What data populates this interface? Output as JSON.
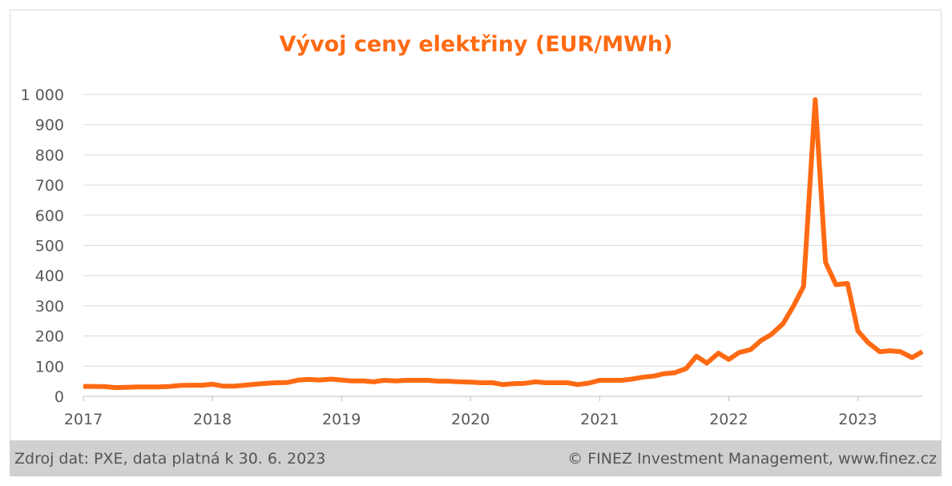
{
  "chart_data": {
    "type": "line",
    "title": "Vývoj ceny elektřiny (EUR/MWh)",
    "xlabel": "",
    "ylabel": "",
    "ylim": [
      0,
      1000
    ],
    "yticks": [
      "0",
      "100",
      "200",
      "300",
      "400",
      "500",
      "600",
      "700",
      "800",
      "900",
      "1 000"
    ],
    "ytick_values": [
      0,
      100,
      200,
      300,
      400,
      500,
      600,
      700,
      800,
      900,
      1000
    ],
    "xticks": [
      "2017",
      "2018",
      "2019",
      "2020",
      "2021",
      "2022",
      "2023"
    ],
    "xtick_values": [
      2017,
      2018,
      2019,
      2020,
      2021,
      2022,
      2023
    ],
    "xlim": [
      2017,
      2023.5
    ],
    "grid": true,
    "color": "#ff6a13",
    "series": [
      {
        "values": [
          [
            2017.0,
            33
          ],
          [
            2017.08,
            33
          ],
          [
            2017.17,
            32
          ],
          [
            2017.25,
            29
          ],
          [
            2017.33,
            30
          ],
          [
            2017.42,
            31
          ],
          [
            2017.5,
            31
          ],
          [
            2017.58,
            31
          ],
          [
            2017.67,
            33
          ],
          [
            2017.75,
            36
          ],
          [
            2017.83,
            37
          ],
          [
            2017.92,
            37
          ],
          [
            2018.0,
            40
          ],
          [
            2018.08,
            34
          ],
          [
            2018.17,
            34
          ],
          [
            2018.25,
            37
          ],
          [
            2018.33,
            40
          ],
          [
            2018.42,
            43
          ],
          [
            2018.5,
            45
          ],
          [
            2018.58,
            46
          ],
          [
            2018.67,
            54
          ],
          [
            2018.75,
            56
          ],
          [
            2018.83,
            54
          ],
          [
            2018.92,
            57
          ],
          [
            2019.0,
            54
          ],
          [
            2019.08,
            51
          ],
          [
            2019.17,
            51
          ],
          [
            2019.25,
            48
          ],
          [
            2019.33,
            53
          ],
          [
            2019.42,
            51
          ],
          [
            2019.5,
            53
          ],
          [
            2019.58,
            53
          ],
          [
            2019.67,
            53
          ],
          [
            2019.75,
            50
          ],
          [
            2019.83,
            50
          ],
          [
            2019.92,
            48
          ],
          [
            2020.0,
            47
          ],
          [
            2020.08,
            45
          ],
          [
            2020.17,
            45
          ],
          [
            2020.25,
            39
          ],
          [
            2020.33,
            42
          ],
          [
            2020.42,
            43
          ],
          [
            2020.5,
            48
          ],
          [
            2020.58,
            45
          ],
          [
            2020.67,
            45
          ],
          [
            2020.75,
            45
          ],
          [
            2020.83,
            39
          ],
          [
            2020.92,
            44
          ],
          [
            2021.0,
            53
          ],
          [
            2021.08,
            53
          ],
          [
            2021.17,
            53
          ],
          [
            2021.25,
            57
          ],
          [
            2021.33,
            63
          ],
          [
            2021.42,
            67
          ],
          [
            2021.5,
            75
          ],
          [
            2021.58,
            78
          ],
          [
            2021.67,
            92
          ],
          [
            2021.75,
            133
          ],
          [
            2021.83,
            110
          ],
          [
            2021.92,
            143
          ],
          [
            2022.0,
            122
          ],
          [
            2022.08,
            145
          ],
          [
            2022.17,
            155
          ],
          [
            2022.25,
            185
          ],
          [
            2022.33,
            205
          ],
          [
            2022.42,
            240
          ],
          [
            2022.5,
            298
          ],
          [
            2022.58,
            364
          ],
          [
            2022.67,
            983
          ],
          [
            2022.75,
            444
          ],
          [
            2022.83,
            370
          ],
          [
            2022.92,
            374
          ],
          [
            2023.0,
            217
          ],
          [
            2023.08,
            178
          ],
          [
            2023.17,
            148
          ],
          [
            2023.25,
            151
          ],
          [
            2023.33,
            148
          ],
          [
            2023.42,
            128
          ],
          [
            2023.5,
            148
          ]
        ]
      }
    ]
  },
  "footer": {
    "source": "Zdroj dat: PXE, data platná k 30. 6. 2023",
    "copyright": "© FINEZ Investment Management, www.finez.cz"
  }
}
